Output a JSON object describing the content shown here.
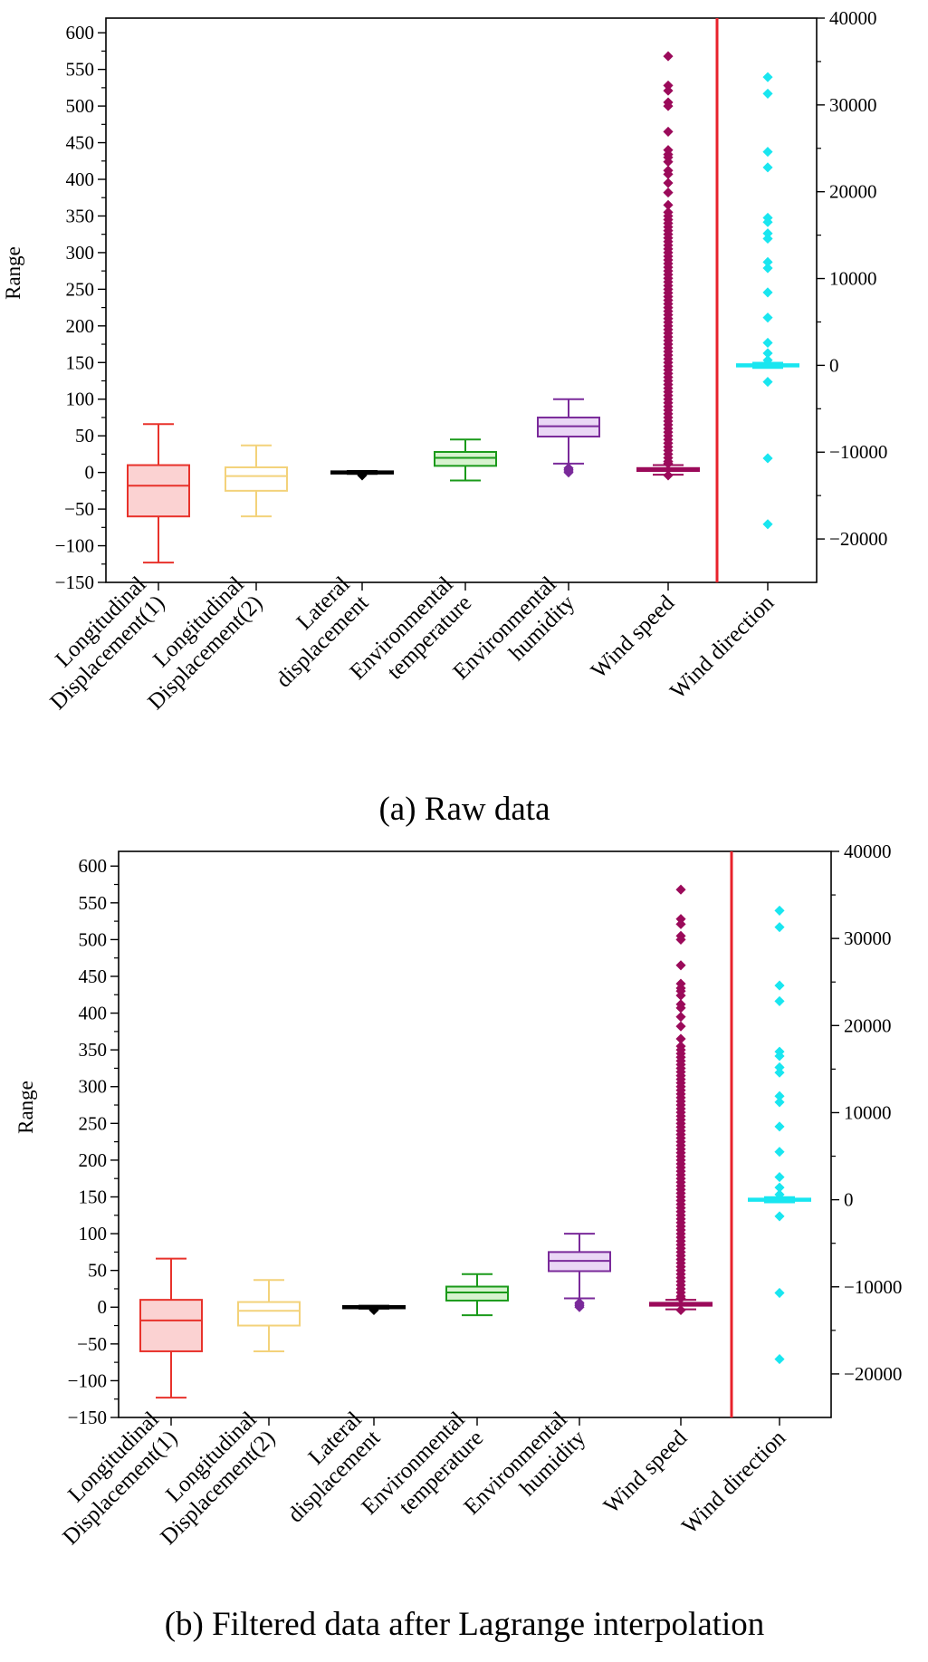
{
  "chart_data": [
    {
      "type": "box",
      "caption": "(a)   Raw data",
      "ylabel": "Range",
      "ylim_left": [
        -150,
        620
      ],
      "yticks_left": [
        -150,
        -100,
        -50,
        0,
        50,
        100,
        150,
        200,
        250,
        300,
        350,
        400,
        450,
        500,
        550,
        600
      ],
      "ylim_right": [
        -25000,
        40000
      ],
      "yticks_right": [
        -20000,
        -10000,
        0,
        10000,
        20000,
        30000,
        40000
      ],
      "right_tick_labels": [
        "−20000",
        "−10000",
        "0",
        "10000",
        "20000",
        "30000",
        "40000"
      ],
      "categories": [
        {
          "lines": [
            "Longitudinal",
            "Displacement(1)"
          ],
          "axis": "left",
          "color": "#e8322b",
          "fill": "#fbd2d2",
          "whisker_low": -123,
          "q1": -60,
          "median": -18,
          "q3": 10,
          "whisker_high": 66,
          "outliers": []
        },
        {
          "lines": [
            "Longitudinal",
            "Displacement(2)"
          ],
          "axis": "left",
          "color": "#f3d27a",
          "fill": "#ffffff",
          "whisker_low": -60,
          "q1": -25,
          "median": -5,
          "q3": 7,
          "whisker_high": 37,
          "outliers": []
        },
        {
          "lines": [
            "Lateral",
            "displacement"
          ],
          "axis": "left",
          "color": "#000000",
          "fill": "#ffffff",
          "whisker_low": -2,
          "q1": -1,
          "median": 0,
          "q3": 1,
          "whisker_high": 2,
          "outliers": [
            -4
          ]
        },
        {
          "lines": [
            "Environmental",
            "temperature"
          ],
          "axis": "left",
          "color": "#1a9a1a",
          "fill": "#d7f3cf",
          "whisker_low": -11,
          "q1": 9,
          "median": 20,
          "q3": 28,
          "whisker_high": 45,
          "outliers": []
        },
        {
          "lines": [
            "Environmental",
            "humidity"
          ],
          "axis": "left",
          "color": "#7a2a9a",
          "fill": "#ead7f5",
          "whisker_low": 12,
          "q1": 49,
          "median": 63,
          "q3": 75,
          "whisker_high": 100,
          "outliers": [
            0,
            2,
            4,
            6
          ]
        },
        {
          "lines": [
            "Wind speed"
          ],
          "axis": "left",
          "color": "#9b0a5a",
          "fill": "#e6b3cf",
          "whisker_low": -3,
          "q1": 2,
          "median": 4,
          "q3": 6,
          "whisker_high": 10,
          "outliers": [
            568,
            528,
            521,
            505,
            500,
            465,
            440,
            434,
            430,
            424,
            412,
            407,
            395,
            382,
            365,
            355,
            350,
            345,
            340,
            335,
            330,
            325,
            320,
            315,
            310,
            305,
            300,
            295,
            290,
            285,
            280,
            275,
            270,
            265,
            260,
            255,
            250,
            245,
            240,
            235,
            230,
            225,
            220,
            215,
            210,
            205,
            200,
            195,
            190,
            185,
            180,
            175,
            170,
            165,
            160,
            155,
            150,
            145,
            140,
            135,
            130,
            125,
            120,
            115,
            110,
            105,
            100,
            95,
            90,
            85,
            80,
            75,
            70,
            65,
            60,
            55,
            50,
            45,
            40,
            35,
            30,
            25,
            20,
            15,
            12,
            -4
          ]
        },
        {
          "lines": [
            "Wind direction"
          ],
          "axis": "right",
          "color": "#19e6f0",
          "fill": "#19e6f0",
          "whisker_low": -300,
          "q1": -50,
          "median": 0,
          "q3": 50,
          "whisker_high": 300,
          "outliers": [
            33200,
            31300,
            24600,
            22800,
            17000,
            16500,
            15200,
            14600,
            11900,
            11200,
            8400,
            5500,
            2600,
            1400,
            600,
            -1900,
            -10700,
            -18300
          ]
        }
      ]
    },
    {
      "type": "box",
      "caption": "(b)   Filtered data after Lagrange interpolation",
      "ylabel": "Range",
      "ylim_left": [
        -150,
        620
      ],
      "yticks_left": [
        -150,
        -100,
        -50,
        0,
        50,
        100,
        150,
        200,
        250,
        300,
        350,
        400,
        450,
        500,
        550,
        600
      ],
      "ylim_right": [
        -25000,
        40000
      ],
      "yticks_right": [
        -20000,
        -10000,
        0,
        10000,
        20000,
        30000,
        40000
      ],
      "right_tick_labels": [
        "−20000",
        "−10000",
        "0",
        "10000",
        "20000",
        "30000",
        "40000"
      ],
      "categories": [
        {
          "lines": [
            "Longitudinal",
            "Displacement(1)"
          ],
          "axis": "left",
          "color": "#e8322b",
          "fill": "#fbd2d2",
          "whisker_low": -123,
          "q1": -60,
          "median": -18,
          "q3": 10,
          "whisker_high": 66,
          "outliers": []
        },
        {
          "lines": [
            "Longitudinal",
            "Displacement(2)"
          ],
          "axis": "left",
          "color": "#f3d27a",
          "fill": "#ffffff",
          "whisker_low": -60,
          "q1": -25,
          "median": -5,
          "q3": 7,
          "whisker_high": 37,
          "outliers": []
        },
        {
          "lines": [
            "Lateral",
            "displacement"
          ],
          "axis": "left",
          "color": "#000000",
          "fill": "#ffffff",
          "whisker_low": -2,
          "q1": -1,
          "median": 0,
          "q3": 1,
          "whisker_high": 2,
          "outliers": [
            -4
          ]
        },
        {
          "lines": [
            "Environmental",
            "temperature"
          ],
          "axis": "left",
          "color": "#1a9a1a",
          "fill": "#d7f3cf",
          "whisker_low": -11,
          "q1": 9,
          "median": 20,
          "q3": 28,
          "whisker_high": 45,
          "outliers": []
        },
        {
          "lines": [
            "Environmental",
            "humidity"
          ],
          "axis": "left",
          "color": "#7a2a9a",
          "fill": "#ead7f5",
          "whisker_low": 12,
          "q1": 49,
          "median": 63,
          "q3": 75,
          "whisker_high": 100,
          "outliers": [
            0,
            2,
            4,
            6
          ]
        },
        {
          "lines": [
            "Wind speed"
          ],
          "axis": "left",
          "color": "#9b0a5a",
          "fill": "#e6b3cf",
          "whisker_low": -3,
          "q1": 2,
          "median": 4,
          "q3": 6,
          "whisker_high": 10,
          "outliers": [
            568,
            528,
            521,
            505,
            500,
            465,
            440,
            434,
            430,
            424,
            412,
            407,
            395,
            382,
            365,
            355,
            350,
            345,
            340,
            335,
            330,
            325,
            320,
            315,
            310,
            305,
            300,
            295,
            290,
            285,
            280,
            275,
            270,
            265,
            260,
            255,
            250,
            245,
            240,
            235,
            230,
            225,
            220,
            215,
            210,
            205,
            200,
            195,
            190,
            185,
            180,
            175,
            170,
            165,
            160,
            155,
            150,
            145,
            140,
            135,
            130,
            125,
            120,
            115,
            110,
            105,
            100,
            95,
            90,
            85,
            80,
            75,
            70,
            65,
            60,
            55,
            50,
            45,
            40,
            35,
            30,
            25,
            20,
            15,
            12,
            -4
          ]
        },
        {
          "lines": [
            "Wind direction"
          ],
          "axis": "right",
          "color": "#19e6f0",
          "fill": "#19e6f0",
          "whisker_low": -300,
          "q1": -50,
          "median": 0,
          "q3": 50,
          "whisker_high": 300,
          "outliers": [
            33200,
            31300,
            24600,
            22800,
            17000,
            16500,
            15200,
            14600,
            11900,
            11200,
            8400,
            5500,
            2600,
            1400,
            600,
            -1900,
            -10700,
            -18300
          ]
        }
      ]
    }
  ],
  "colors": {
    "axis": "#000000",
    "separator": "#e8222b"
  }
}
